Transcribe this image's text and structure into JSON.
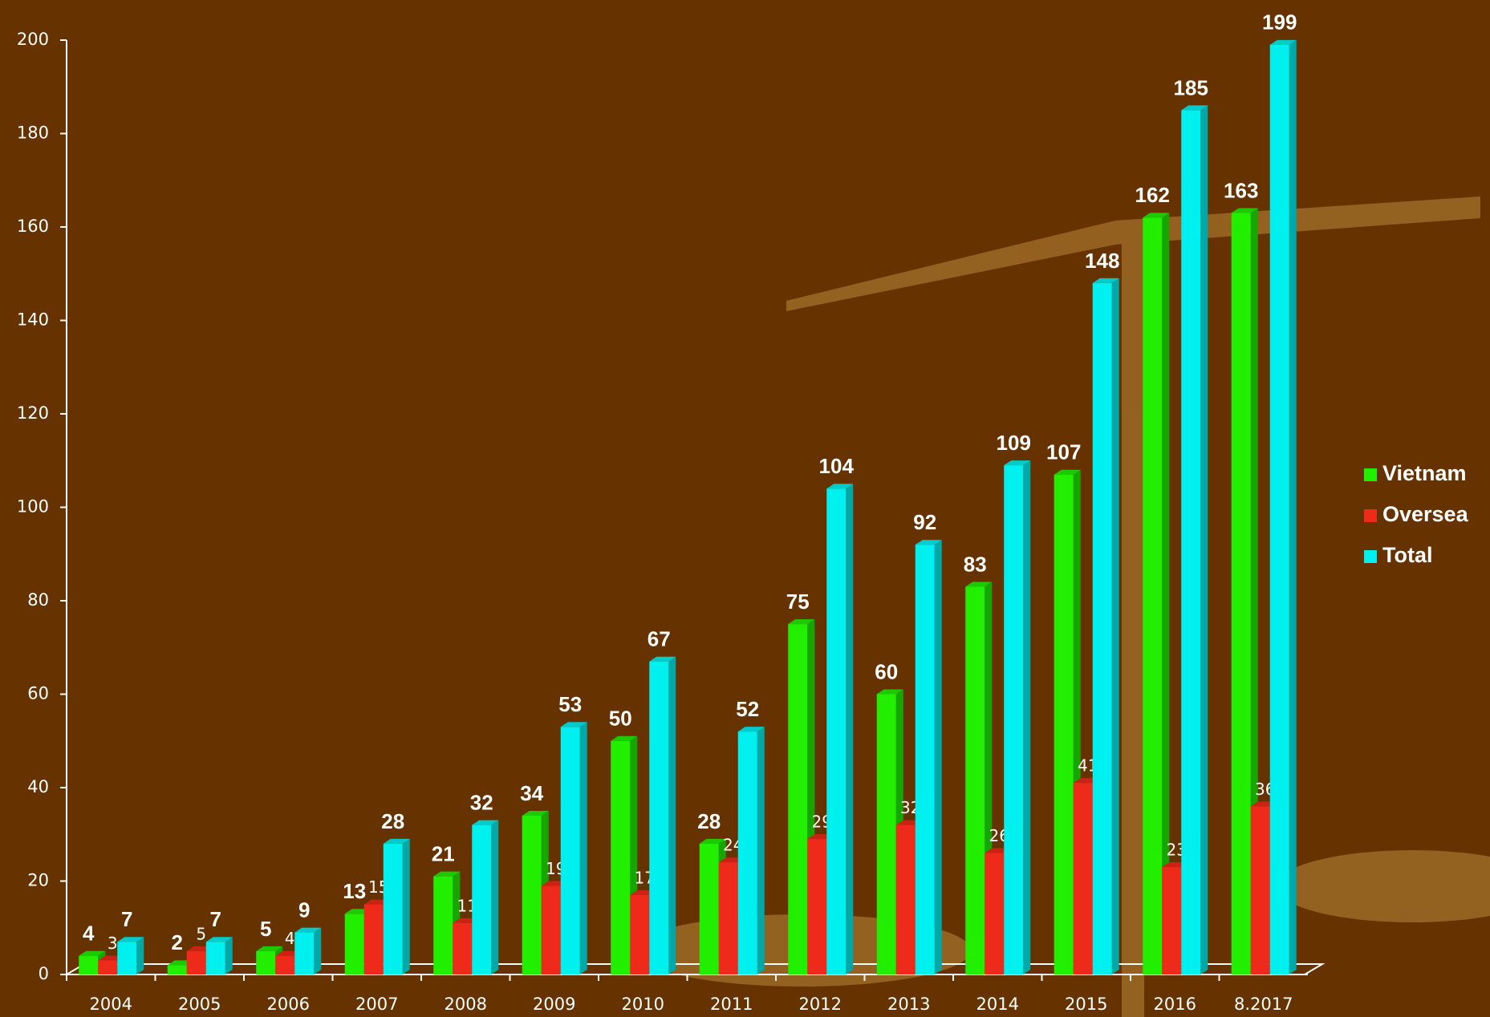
{
  "chart_data": {
    "type": "bar",
    "categories": [
      "2004",
      "2005",
      "2006",
      "2007",
      "2008",
      "2009",
      "2010",
      "2011",
      "2012",
      "2013",
      "2014",
      "2015",
      "2016",
      "8.2017"
    ],
    "series": [
      {
        "name": "Vietnam",
        "color": "#22ee00",
        "values": [
          4,
          2,
          5,
          13,
          21,
          34,
          50,
          28,
          75,
          60,
          83,
          107,
          162,
          163
        ]
      },
      {
        "name": "Oversea",
        "color": "#ee2a1a",
        "values": [
          3,
          5,
          4,
          15,
          11,
          19,
          17,
          24,
          29,
          32,
          26,
          41,
          23,
          36
        ]
      },
      {
        "name": "Total",
        "color": "#00f0f0",
        "values": [
          7,
          7,
          9,
          28,
          32,
          53,
          67,
          52,
          104,
          92,
          109,
          148,
          185,
          199
        ]
      }
    ],
    "ylim": [
      0,
      200
    ],
    "yticks": [
      0,
      20,
      40,
      60,
      80,
      100,
      120,
      140,
      160,
      180,
      200
    ],
    "legend": "right"
  }
}
